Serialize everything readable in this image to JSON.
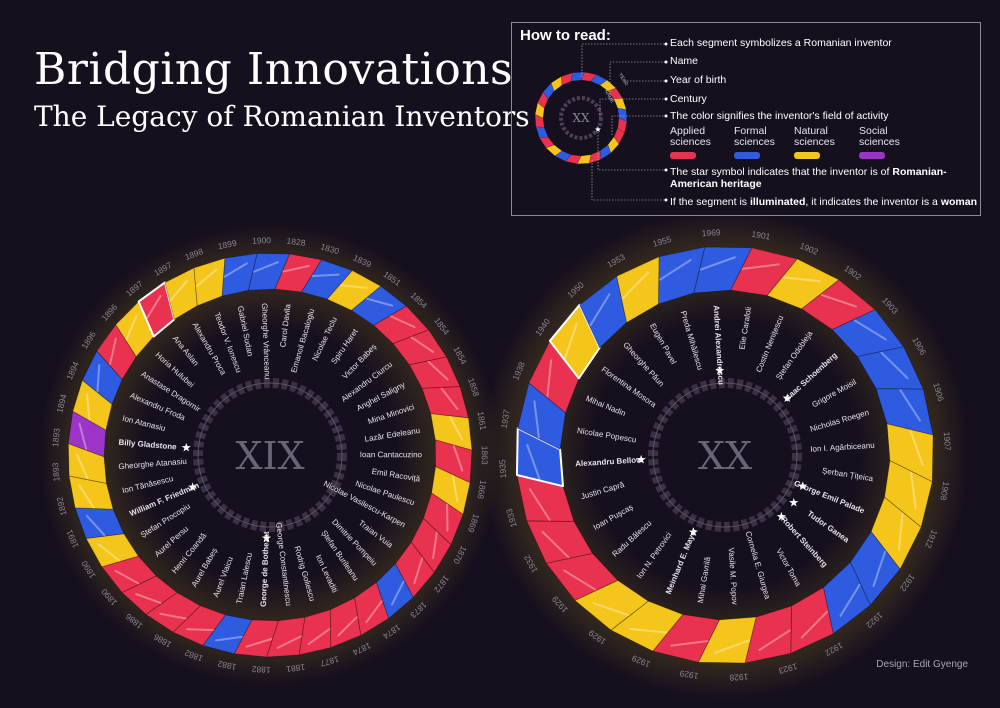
{
  "header": {
    "title": "Bridging Innovations",
    "subtitle": "The Legacy of Romanian Inventors"
  },
  "legend": {
    "heading": "How to read:",
    "segment_note": "Each segment symbolizes a Romanian inventor",
    "name_note": "Name",
    "year_note": "Year of birth",
    "century_note": "Century",
    "color_note": "The color signifies the inventor's field of activity",
    "sample_century": "XX",
    "sample_name": "NAME",
    "sample_year": "YEAR",
    "categories": [
      {
        "line1": "Applied",
        "line2": "sciences",
        "color": "#e8324f"
      },
      {
        "line1": "Formal",
        "line2": "sciences",
        "color": "#2f5be0"
      },
      {
        "line1": "Natural",
        "line2": "sciences",
        "color": "#f4c51a"
      },
      {
        "line1": "Social",
        "line2": "sciences",
        "color": "#9c34c8"
      }
    ],
    "star_note_pre": "The star symbol indicates that the inventor is of ",
    "star_note_bold": "Romanian-",
    "star_note_bold2": "American heritage",
    "illum_pre": "If the segment is ",
    "illum_bold": "illuminated",
    "illum_mid": ", it indicates the inventor is a ",
    "illum_bold2": "woman"
  },
  "credit": "Design: Edit Gyenge",
  "colors": {
    "A": "#e8324f",
    "F": "#2f5be0",
    "N": "#f4c51a",
    "S": "#9c34c8"
  },
  "wheels": [
    {
      "century": "XIX",
      "entries": [
        {
          "name": "Gheorghe Vrânceanu",
          "year": "1900",
          "field": "F"
        },
        {
          "name": "Carol Davila",
          "year": "1828",
          "field": "A"
        },
        {
          "name": "Emanoil Bacaloglu",
          "year": "1830",
          "field": "F"
        },
        {
          "name": "Nicolae Teclu",
          "year": "1839",
          "field": "N"
        },
        {
          "name": "Spiru Haret",
          "year": "1851",
          "field": "F"
        },
        {
          "name": "Victor Babeș",
          "year": "1854",
          "field": "A"
        },
        {
          "name": "Alexandru Ciurcu",
          "year": "1854",
          "field": "A"
        },
        {
          "name": "Anghel Saligny",
          "year": "1854",
          "field": "A"
        },
        {
          "name": "Mina Minovici",
          "year": "1858",
          "field": "A"
        },
        {
          "name": "Lazăr Edeleanu",
          "year": "1861",
          "field": "N"
        },
        {
          "name": "Ioan Cantacuzino",
          "year": "1863",
          "field": "A"
        },
        {
          "name": "Emil Racoviță",
          "year": "1868",
          "field": "N"
        },
        {
          "name": "Nicolae Paulescu",
          "year": "1869",
          "field": "A"
        },
        {
          "name": "Nicolae Vasilescu-Karpen",
          "year": "1870",
          "field": "A"
        },
        {
          "name": "Traian Vuia",
          "year": "1872",
          "field": "A"
        },
        {
          "name": "Dimitrie Pompeiu",
          "year": "1873",
          "field": "F"
        },
        {
          "name": "Ștefan Burileanu",
          "year": "1874",
          "field": "A"
        },
        {
          "name": "Ion Levaditi",
          "year": "1874",
          "field": "A"
        },
        {
          "name": "Rodrig Goliescu",
          "year": "1877",
          "field": "A"
        },
        {
          "name": "George Constantinescu",
          "year": "1881",
          "field": "A"
        },
        {
          "name": "George de Bothezat",
          "year": "1882",
          "field": "A",
          "star": true
        },
        {
          "name": "Traian Lalescu",
          "year": "1882",
          "field": "F"
        },
        {
          "name": "Aurel Vlaicu",
          "year": "1882",
          "field": "A"
        },
        {
          "name": "Aurel Babeș",
          "year": "1886",
          "field": "A"
        },
        {
          "name": "Henri Coandă",
          "year": "1886",
          "field": "A"
        },
        {
          "name": "Aurel Persu",
          "year": "1890",
          "field": "A"
        },
        {
          "name": "Ștefan Procopiu",
          "year": "1890",
          "field": "N"
        },
        {
          "name": "William F. Friedman",
          "year": "1891",
          "field": "F",
          "star": true
        },
        {
          "name": "Ion Tănăsescu",
          "year": "1892",
          "field": "N"
        },
        {
          "name": "Gheorghe Atanasiu",
          "year": "1893",
          "field": "N"
        },
        {
          "name": "Billy Gladstone",
          "year": "1893",
          "field": "S",
          "star": true
        },
        {
          "name": "Ion Atanasiu",
          "year": "1894",
          "field": "N"
        },
        {
          "name": "Alexandru Froda",
          "year": "1894",
          "field": "F"
        },
        {
          "name": "Anastase Dragomir",
          "year": "1896",
          "field": "A"
        },
        {
          "name": "Horia Hulubei",
          "year": "1896",
          "field": "N"
        },
        {
          "name": "Ana Aslan",
          "year": "1897",
          "field": "A",
          "woman": true
        },
        {
          "name": "Alexandru Proca",
          "year": "1897",
          "field": "N"
        },
        {
          "name": "Teodor V. Ionescu",
          "year": "1898",
          "field": "N"
        },
        {
          "name": "Gabriel Sudan",
          "year": "1899",
          "field": "F"
        }
      ]
    },
    {
      "century": "XX",
      "entries": [
        {
          "name": "Elie Carafoli",
          "year": "1901",
          "field": "A"
        },
        {
          "name": "Costin Nenițescu",
          "year": "1902",
          "field": "N"
        },
        {
          "name": "Ștefan Odobleja",
          "year": "1902",
          "field": "A"
        },
        {
          "name": "Isaac Schoenberg",
          "year": "1903",
          "field": "F",
          "star": true
        },
        {
          "name": "Grigore Moisil",
          "year": "1906",
          "field": "F"
        },
        {
          "name": "Nicholas Roegen",
          "year": "1906",
          "field": "F"
        },
        {
          "name": "Ion I. Agârbiceanu",
          "year": "1907",
          "field": "N"
        },
        {
          "name": "Șerban Țițeica",
          "year": "1908",
          "field": "N"
        },
        {
          "name": "George Emil Palade",
          "year": "1912",
          "field": "N",
          "star": true
        },
        {
          "name": "Tudor Ganea",
          "year": "1922",
          "field": "F",
          "star": true
        },
        {
          "name": "Robert Steinberg",
          "year": "1922",
          "field": "F",
          "star": true
        },
        {
          "name": "Victor Toma",
          "year": "1922",
          "field": "A"
        },
        {
          "name": "Cornelia E. Giurgea",
          "year": "1923",
          "field": "A"
        },
        {
          "name": "Vasile M. Popov",
          "year": "1928",
          "field": "N"
        },
        {
          "name": "Mihai Gavrilă",
          "year": "1929",
          "field": "A"
        },
        {
          "name": "Meinhard E. Mayer",
          "year": "1929",
          "field": "N",
          "star": true
        },
        {
          "name": "Ion N. Petrovici",
          "year": "1929",
          "field": "N"
        },
        {
          "name": "Radu Bălescu",
          "year": "1929",
          "field": "A"
        },
        {
          "name": "Ioan Pușcaș",
          "year": "1932",
          "field": "A"
        },
        {
          "name": "Justin Capră",
          "year": "1933",
          "field": "A"
        },
        {
          "name": "Alexandru Bellow",
          "year": "1935",
          "field": "F",
          "star": true,
          "woman": true
        },
        {
          "name": "Nicolae Popescu",
          "year": "1937",
          "field": "F"
        },
        {
          "name": "Mihai Nadin",
          "year": "1938",
          "field": "A"
        },
        {
          "name": "Florentina Mosora",
          "year": "1940",
          "field": "N",
          "woman": true
        },
        {
          "name": "Gheorghe Păun",
          "year": "1950",
          "field": "F"
        },
        {
          "name": "Eugen Pavel",
          "year": "1953",
          "field": "N"
        },
        {
          "name": "Preda Mihăilescu",
          "year": "1955",
          "field": "F"
        },
        {
          "name": "Andrei Alexandrescu",
          "year": "1969",
          "field": "F",
          "star": true
        }
      ]
    }
  ]
}
